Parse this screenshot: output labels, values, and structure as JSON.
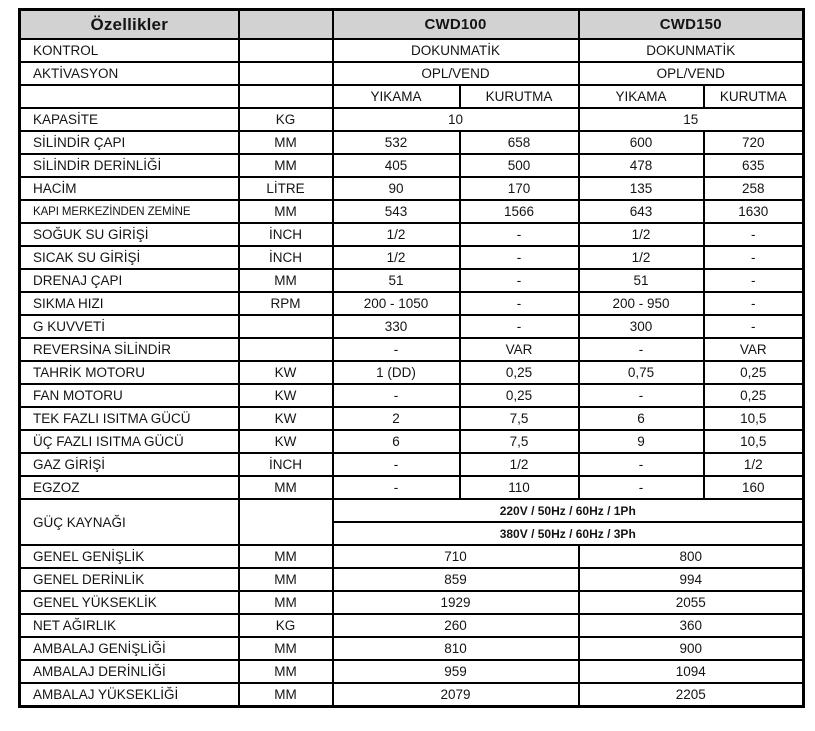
{
  "table": {
    "header": {
      "features_label": "Özellikler",
      "unit_label": "",
      "models": [
        {
          "label": "CWD100"
        },
        {
          "label": "CWD150"
        }
      ]
    },
    "rows": [
      {
        "label": "KONTROL",
        "unit": "",
        "cells": [
          {
            "text": "DOKUNMATİK",
            "span": 2
          },
          {
            "text": "DOKUNMATİK",
            "span": 2
          }
        ]
      },
      {
        "label": "AKTİVASYON",
        "unit": "",
        "cells": [
          {
            "text": "OPL/VEND",
            "span": 2
          },
          {
            "text": "OPL/VEND",
            "span": 2
          }
        ]
      },
      {
        "label": "",
        "unit": "",
        "mode_header": true,
        "cells": [
          {
            "text": "YIKAMA"
          },
          {
            "text": "KURUTMA"
          },
          {
            "text": "YIKAMA"
          },
          {
            "text": "KURUTMA"
          }
        ]
      },
      {
        "label": "KAPASİTE",
        "unit": "KG",
        "cells": [
          {
            "text": "10",
            "span": 2
          },
          {
            "text": "15",
            "span": 2
          }
        ]
      },
      {
        "label": "SİLİNDİR ÇAPI",
        "unit": "MM",
        "cells": [
          {
            "text": "532"
          },
          {
            "text": "658"
          },
          {
            "text": "600"
          },
          {
            "text": "720"
          }
        ]
      },
      {
        "label": "SİLİNDİR DERİNLİĞİ",
        "unit": "MM",
        "cells": [
          {
            "text": "405"
          },
          {
            "text": "500"
          },
          {
            "text": "478"
          },
          {
            "text": "635"
          }
        ]
      },
      {
        "label": "HACİM",
        "unit": "LİTRE",
        "cells": [
          {
            "text": "90"
          },
          {
            "text": "170"
          },
          {
            "text": "135"
          },
          {
            "text": "258"
          }
        ]
      },
      {
        "label": "KAPI MERKEZİNDEN ZEMİNE",
        "unit": "MM",
        "small_label": true,
        "cells": [
          {
            "text": "543"
          },
          {
            "text": "1566"
          },
          {
            "text": "643"
          },
          {
            "text": "1630"
          }
        ]
      },
      {
        "label": "SOĞUK SU GİRİŞİ",
        "unit": "İNCH",
        "cells": [
          {
            "text": "1/2"
          },
          {
            "text": "-"
          },
          {
            "text": "1/2"
          },
          {
            "text": "-"
          }
        ]
      },
      {
        "label": "SICAK SU GİRİŞİ",
        "unit": "İNCH",
        "cells": [
          {
            "text": "1/2"
          },
          {
            "text": "-"
          },
          {
            "text": "1/2"
          },
          {
            "text": "-"
          }
        ]
      },
      {
        "label": "DRENAJ ÇAPI",
        "unit": "MM",
        "cells": [
          {
            "text": "51"
          },
          {
            "text": "-"
          },
          {
            "text": "51"
          },
          {
            "text": "-"
          }
        ]
      },
      {
        "label": "SIKMA HIZI",
        "unit": "RPM",
        "cells": [
          {
            "text": "200 - 1050"
          },
          {
            "text": "-"
          },
          {
            "text": "200 - 950"
          },
          {
            "text": "-"
          }
        ]
      },
      {
        "label": "G KUVVETİ",
        "unit": "",
        "cells": [
          {
            "text": "330"
          },
          {
            "text": "-"
          },
          {
            "text": "300"
          },
          {
            "text": "-"
          }
        ]
      },
      {
        "label": "REVERSİNA SİLİNDİR",
        "unit": "",
        "cells": [
          {
            "text": "-"
          },
          {
            "text": "VAR"
          },
          {
            "text": "-"
          },
          {
            "text": "VAR"
          }
        ]
      },
      {
        "label": "TAHRİK MOTORU",
        "unit": "KW",
        "cells": [
          {
            "text": "1 (DD)"
          },
          {
            "text": "0,25"
          },
          {
            "text": "0,75"
          },
          {
            "text": "0,25"
          }
        ]
      },
      {
        "label": "FAN MOTORU",
        "unit": "KW",
        "cells": [
          {
            "text": "-"
          },
          {
            "text": "0,25"
          },
          {
            "text": "-"
          },
          {
            "text": "0,25"
          }
        ]
      },
      {
        "label": "TEK FAZLI ISITMA GÜCÜ",
        "unit": "KW",
        "cells": [
          {
            "text": "2"
          },
          {
            "text": "7,5"
          },
          {
            "text": "6"
          },
          {
            "text": "10,5"
          }
        ]
      },
      {
        "label": "ÜÇ FAZLI ISITMA GÜCÜ",
        "unit": "KW",
        "cells": [
          {
            "text": "6"
          },
          {
            "text": "7,5"
          },
          {
            "text": "9"
          },
          {
            "text": "10,5"
          }
        ]
      },
      {
        "label": "GAZ GİRİŞİ",
        "unit": "İNCH",
        "cells": [
          {
            "text": "-"
          },
          {
            "text": "1/2"
          },
          {
            "text": "-"
          },
          {
            "text": "1/2"
          }
        ]
      },
      {
        "label": "EGZOZ",
        "unit": "MM",
        "cells": [
          {
            "text": "-"
          },
          {
            "text": "110"
          },
          {
            "text": "-"
          },
          {
            "text": "160"
          }
        ]
      },
      {
        "label": "GÜÇ KAYNAĞI",
        "unit": "",
        "rowspan": 2,
        "cells": [
          {
            "text": "220V / 50Hz / 60Hz / 1Ph",
            "span": 4,
            "bold": true
          }
        ]
      },
      {
        "cells": [
          {
            "text": "380V / 50Hz / 60Hz / 3Ph",
            "span": 4,
            "bold": true
          }
        ]
      },
      {
        "label": "GENEL GENİŞLİK",
        "unit": "MM",
        "cells": [
          {
            "text": "710",
            "span": 2
          },
          {
            "text": "800",
            "span": 2
          }
        ]
      },
      {
        "label": "GENEL DERİNLİK",
        "unit": "MM",
        "cells": [
          {
            "text": "859",
            "span": 2
          },
          {
            "text": "994",
            "span": 2
          }
        ]
      },
      {
        "label": "GENEL YÜKSEKLİK",
        "unit": "MM",
        "cells": [
          {
            "text": "1929",
            "span": 2
          },
          {
            "text": "2055",
            "span": 2
          }
        ]
      },
      {
        "label": "NET AĞIRLIK",
        "unit": "KG",
        "cells": [
          {
            "text": "260",
            "span": 2
          },
          {
            "text": "360",
            "span": 2
          }
        ]
      },
      {
        "label": "AMBALAJ GENİŞLİĞİ",
        "unit": "MM",
        "cells": [
          {
            "text": "810",
            "span": 2
          },
          {
            "text": "900",
            "span": 2
          }
        ]
      },
      {
        "label": "AMBALAJ DERİNLİĞİ",
        "unit": "MM",
        "cells": [
          {
            "text": "959",
            "span": 2
          },
          {
            "text": "1094",
            "span": 2
          }
        ]
      },
      {
        "label": "AMBALAJ YÜKSEKLİĞİ",
        "unit": "MM",
        "cells": [
          {
            "text": "2079",
            "span": 2
          },
          {
            "text": "2205",
            "span": 2
          }
        ]
      }
    ]
  }
}
